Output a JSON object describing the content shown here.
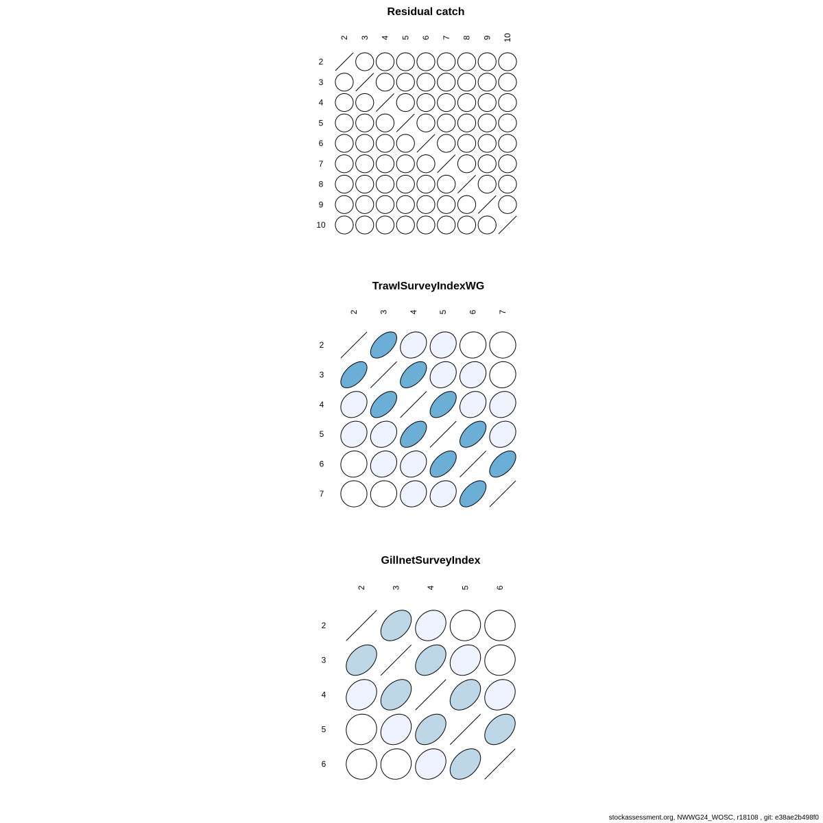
{
  "chart_data": [
    {
      "type": "heatmap",
      "subtype": "correlation-ellipse",
      "title": "Residual catch",
      "labels": [
        "2",
        "3",
        "4",
        "5",
        "6",
        "7",
        "8",
        "9",
        "10"
      ],
      "matrix": [
        [
          1,
          0,
          0,
          0,
          0,
          0,
          0,
          0,
          0
        ],
        [
          0,
          1,
          0,
          0,
          0,
          0,
          0,
          0,
          0
        ],
        [
          0,
          0,
          1,
          0,
          0,
          0,
          0,
          0,
          0
        ],
        [
          0,
          0,
          0,
          1,
          0,
          0,
          0,
          0,
          0
        ],
        [
          0,
          0,
          0,
          0,
          1,
          0,
          0,
          0,
          0
        ],
        [
          0,
          0,
          0,
          0,
          0,
          1,
          0,
          0,
          0
        ],
        [
          0,
          0,
          0,
          0,
          0,
          0,
          1,
          0,
          0
        ],
        [
          0,
          0,
          0,
          0,
          0,
          0,
          0,
          1,
          0
        ],
        [
          0,
          0,
          0,
          0,
          0,
          0,
          0,
          0,
          1
        ]
      ]
    },
    {
      "type": "heatmap",
      "subtype": "correlation-ellipse",
      "title": "TrawlSurveyIndexWG",
      "labels": [
        "2",
        "3",
        "4",
        "5",
        "6",
        "7"
      ],
      "matrix": [
        [
          1,
          0.55,
          0.2,
          0.15,
          0.05,
          0
        ],
        [
          0.55,
          1,
          0.55,
          0.2,
          0.15,
          0.05
        ],
        [
          0.2,
          0.55,
          1,
          0.55,
          0.2,
          0.15
        ],
        [
          0.15,
          0.2,
          0.55,
          1,
          0.55,
          0.2
        ],
        [
          0.05,
          0.15,
          0.2,
          0.55,
          1,
          0.55
        ],
        [
          0,
          0.05,
          0.15,
          0.2,
          0.55,
          1
        ]
      ]
    },
    {
      "type": "heatmap",
      "subtype": "correlation-ellipse",
      "title": "GillnetSurveyIndex",
      "labels": [
        "2",
        "3",
        "4",
        "5",
        "6"
      ],
      "matrix": [
        [
          1,
          0.4,
          0.2,
          0.05,
          0
        ],
        [
          0.4,
          1,
          0.4,
          0.2,
          0.05
        ],
        [
          0.2,
          0.4,
          1,
          0.4,
          0.2
        ],
        [
          0.05,
          0.2,
          0.4,
          1,
          0.4
        ],
        [
          0,
          0.05,
          0.2,
          0.4,
          1
        ]
      ]
    }
  ],
  "palette": {
    "breaks": [
      0.1,
      0.3,
      0.5
    ],
    "colors": [
      "#ffffff",
      "#eff3ff",
      "#bdd7e7",
      "#6baed6"
    ],
    "stroke": "#000000"
  },
  "footer": "stockassessment.org, NWWG24_WOSC, r18108 , git: e38ae2b498f0"
}
